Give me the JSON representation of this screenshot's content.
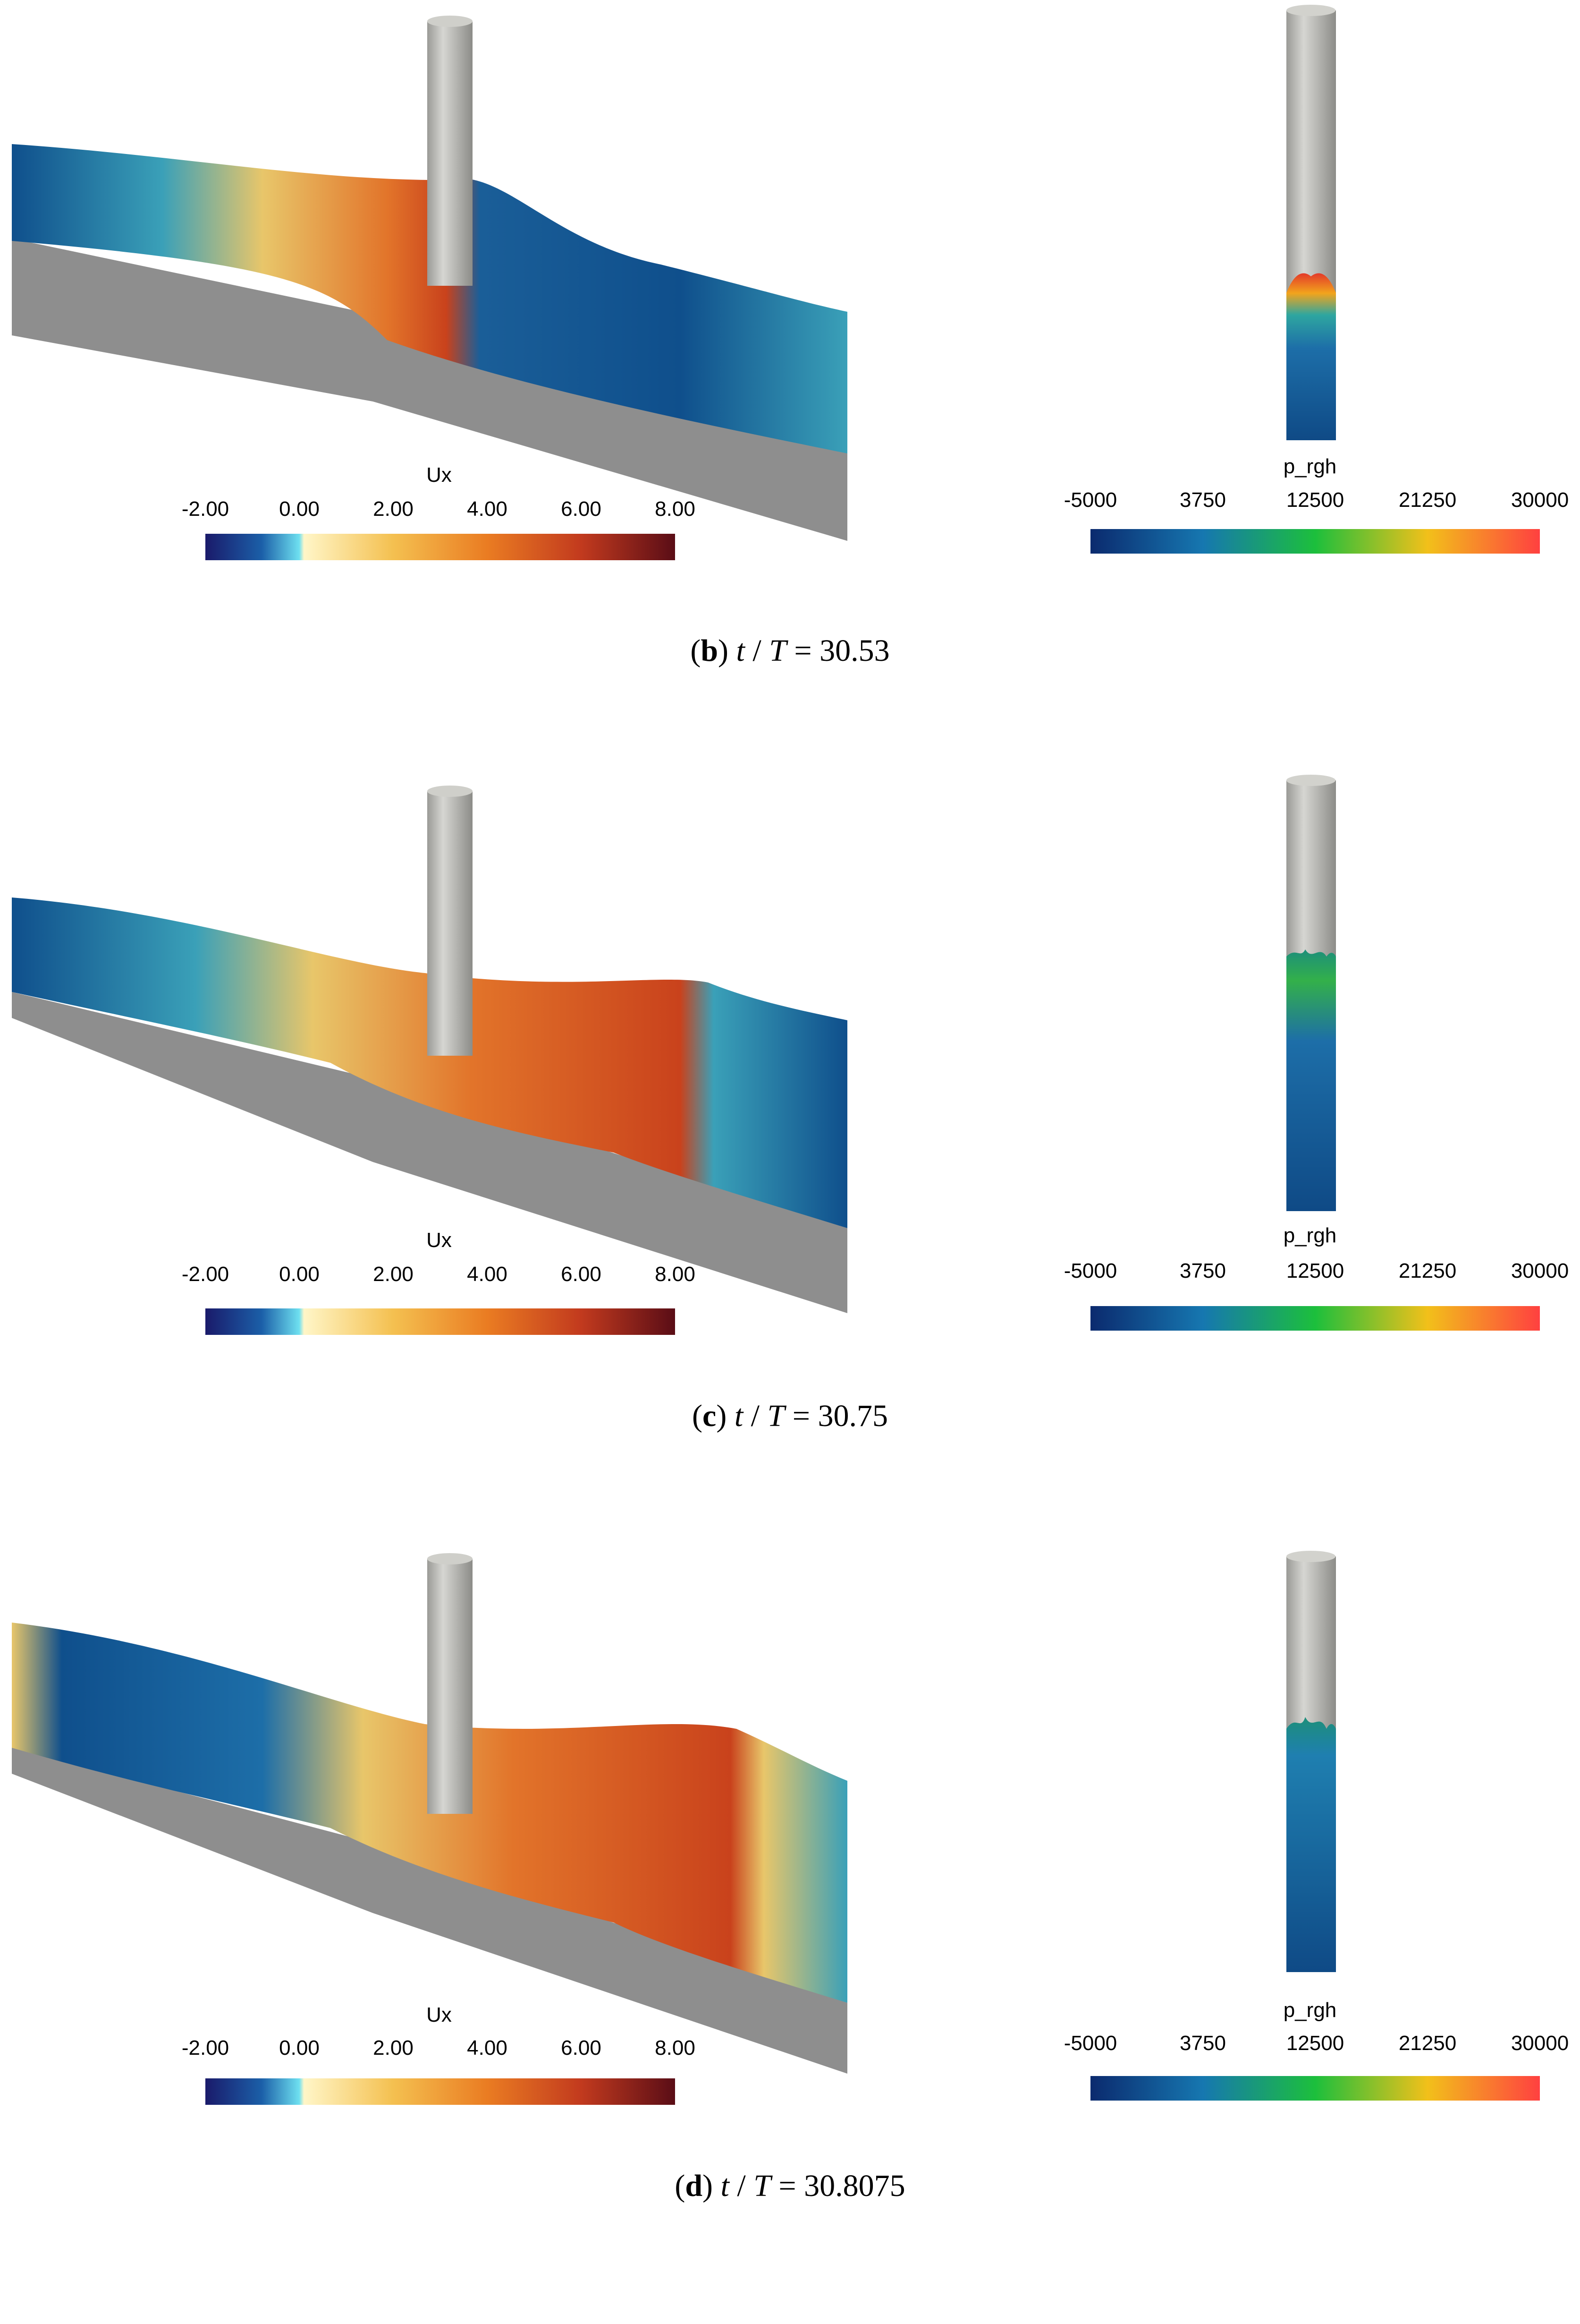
{
  "panels": [
    {
      "id": "b",
      "label": "b",
      "t_var": "t",
      "T_var": "T",
      "time_value": "30.53",
      "left_colorbar": {
        "title": "Ux",
        "ticks": [
          "-2.00",
          "0.00",
          "2.00",
          "4.00",
          "6.00",
          "8.00"
        ]
      },
      "right_colorbar": {
        "title": "p_rgh",
        "ticks": [
          "-5000",
          "3750",
          "12500",
          "21250",
          "30000"
        ]
      }
    },
    {
      "id": "c",
      "label": "c",
      "t_var": "t",
      "T_var": "T",
      "time_value": "30.75",
      "left_colorbar": {
        "title": "Ux",
        "ticks": [
          "-2.00",
          "0.00",
          "2.00",
          "4.00",
          "6.00",
          "8.00"
        ]
      },
      "right_colorbar": {
        "title": "p_rgh",
        "ticks": [
          "-5000",
          "3750",
          "12500",
          "21250",
          "30000"
        ]
      }
    },
    {
      "id": "d",
      "label": "d",
      "t_var": "t",
      "T_var": "T",
      "time_value": "30.8075",
      "left_colorbar": {
        "title": "Ux",
        "ticks": [
          "-2.00",
          "0.00",
          "2.00",
          "4.00",
          "6.00",
          "8.00"
        ]
      },
      "right_colorbar": {
        "title": "p_rgh",
        "ticks": [
          "-5000",
          "3750",
          "12500",
          "21250",
          "30000"
        ]
      }
    }
  ],
  "colors": {
    "bed_gray": "#8e8e8e",
    "cylinder": "#c2c2bd",
    "water_blue": "#0f4f8c",
    "water_teal": "#3aa0b8",
    "water_yellow": "#e8c66a",
    "water_orange": "#e2742a",
    "water_red": "#c9421c"
  }
}
